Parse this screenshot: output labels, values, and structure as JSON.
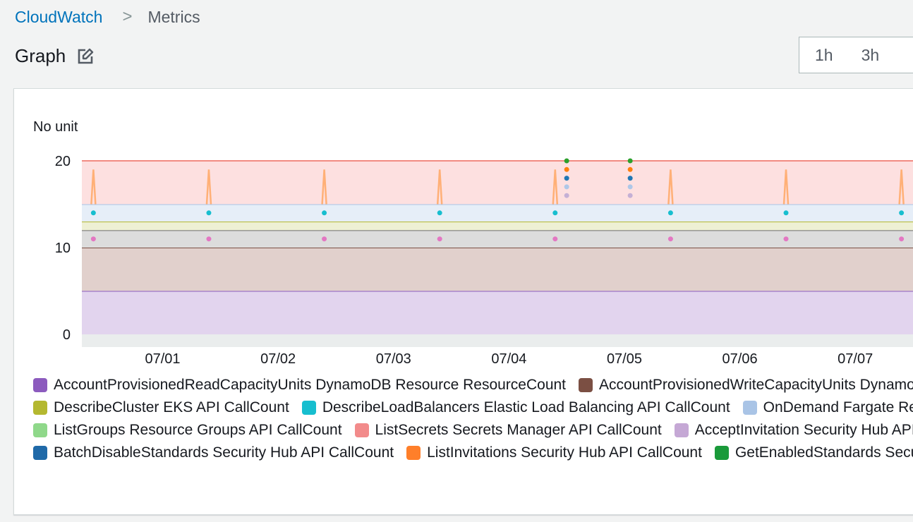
{
  "breadcrumb": {
    "root": "CloudWatch",
    "separator": ">",
    "current": "Metrics"
  },
  "graph": {
    "title": "Graph"
  },
  "time_range": {
    "options": [
      "1h",
      "3h"
    ]
  },
  "chart_data": {
    "type": "area",
    "ylabel": "No unit",
    "ylim": [
      0,
      20
    ],
    "yticks": [
      0,
      10,
      20
    ],
    "xticks": [
      "07/01",
      "07/02",
      "07/03",
      "07/04",
      "07/05",
      "07/06",
      "07/07"
    ],
    "x_range": [
      -0.7,
      6.5
    ],
    "bands": [
      {
        "from": 0,
        "to": 5,
        "fill": "#e2d4ee",
        "stroke": "#8c5bbe"
      },
      {
        "from": 5,
        "to": 10,
        "fill": "#e1d0cc",
        "stroke": "#7b4f43"
      },
      {
        "from": 10,
        "to": 12,
        "fill": "#dcdcdc",
        "stroke": "#6b6b6b"
      },
      {
        "from": 12,
        "to": 13,
        "fill": "#eef0d4",
        "stroke": "#b4b830"
      },
      {
        "from": 13,
        "to": 15,
        "fill": "#e6eef8",
        "stroke": "#a9c4e6"
      },
      {
        "from": 15,
        "to": 20,
        "fill": "#fde0e0",
        "stroke": "#f28b82"
      }
    ],
    "spikes": {
      "x": [
        -0.6,
        0.4,
        1.4,
        2.4,
        3.4,
        4.4,
        5.4,
        6.4
      ],
      "from": 15,
      "to": 19,
      "color": "#ffb077"
    },
    "cyan_points": {
      "x": [
        -0.6,
        0.4,
        1.4,
        2.4,
        3.4,
        4.4,
        5.4,
        6.4
      ],
      "y": 14,
      "color": "#17becf"
    },
    "pink_points": {
      "x": [
        -0.6,
        0.4,
        1.4,
        2.4,
        3.4,
        4.4,
        5.4,
        6.4
      ],
      "y": 11,
      "color": "#e377c2"
    },
    "stack_points": [
      {
        "x": 3.5,
        "colors": [
          "#c5b0d5",
          "#aec7e8",
          "#1f77b4",
          "#ff7f0e",
          "#2ca02c"
        ],
        "ys": [
          16,
          17,
          18,
          19,
          20
        ]
      },
      {
        "x": 4.05,
        "colors": [
          "#c5b0d5",
          "#aec7e8",
          "#1f77b4",
          "#ff7f0e",
          "#2ca02c"
        ],
        "ys": [
          16,
          17,
          18,
          19,
          20
        ]
      }
    ]
  },
  "legend": {
    "rows": [
      [
        {
          "label": "AccountProvisionedReadCapacityUnits DynamoDB Resource ResourceCount",
          "color": "#8c5bbe"
        },
        {
          "label": "AccountProvisionedWriteCapacityUnits DynamoDB Resource ResourceCount",
          "color": "#7b4f43"
        }
      ],
      [
        {
          "label": "DescribeCluster EKS API CallCount",
          "color": "#b4b830"
        },
        {
          "label": "DescribeLoadBalancers Elastic Load Balancing API CallCount",
          "color": "#17becf"
        },
        {
          "label": "OnDemand Fargate Resource ResourceCount",
          "color": "#a9c4e6"
        }
      ],
      [
        {
          "label": "ListGroups Resource Groups API CallCount",
          "color": "#8fd88a"
        },
        {
          "label": "ListSecrets Secrets Manager API CallCount",
          "color": "#f28b8b"
        },
        {
          "label": "AcceptInvitation Security Hub API CallCount",
          "color": "#c5a8d5"
        }
      ],
      [
        {
          "label": "BatchDisableStandards Security Hub API CallCount",
          "color": "#1f69a8"
        },
        {
          "label": "ListInvitations Security Hub API CallCount",
          "color": "#ff7f2a"
        },
        {
          "label": "GetEnabledStandards Security Hub API CallCount",
          "color": "#1a9a3a"
        }
      ]
    ]
  }
}
